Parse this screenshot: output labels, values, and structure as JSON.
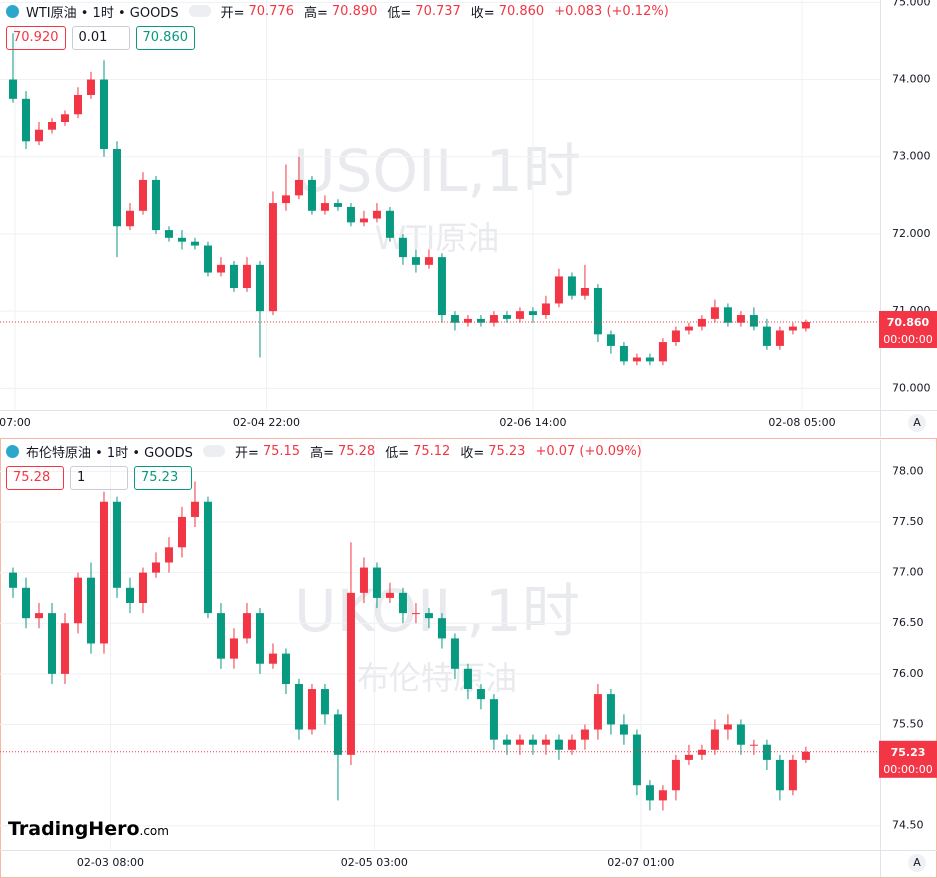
{
  "chart_data": [
    {
      "type": "candlestick",
      "title": "WTI原油 • 1时 • GOODS",
      "ohlc": [
        {
          "label": "开=",
          "value": "70.776"
        },
        {
          "label": "高=",
          "value": "70.890"
        },
        {
          "label": "低=",
          "value": "70.737"
        },
        {
          "label": "收=",
          "value": "70.860"
        }
      ],
      "change": "+0.083 (+0.12%)",
      "inputs": [
        "70.920",
        "0.01",
        "70.860"
      ],
      "watermark": "USOIL,1时",
      "watermark_sub": "WTI原油",
      "up_color": "#f23645",
      "down_color": "#089981",
      "grid": true,
      "xlim": [
        -1,
        66.7
      ],
      "xticks": [
        {
          "value": 0.15,
          "label": "07:00"
        },
        {
          "value": 19.5,
          "label": "02-04 22:00"
        },
        {
          "value": 40,
          "label": "02-06 14:00"
        },
        {
          "value": 60.7,
          "label": "02-08 05:00"
        }
      ],
      "ylim": [
        69.72,
        75.03
      ],
      "yticks": [
        {
          "value": 70,
          "label": "70.000"
        },
        {
          "value": 71,
          "label": "71.000"
        },
        {
          "value": 72,
          "label": "72.000"
        },
        {
          "value": 73,
          "label": "73.000"
        },
        {
          "value": 74,
          "label": "74.000"
        },
        {
          "value": 75,
          "label": "75.000"
        }
      ],
      "open": [
        74.0,
        73.75,
        73.2,
        73.35,
        73.45,
        73.55,
        73.8,
        74.0,
        73.1,
        72.1,
        72.3,
        72.7,
        72.05,
        71.95,
        71.9,
        71.85,
        71.5,
        71.6,
        71.3,
        71.6,
        71.0,
        72.4,
        72.5,
        72.7,
        72.3,
        72.4,
        72.35,
        72.15,
        72.2,
        72.3,
        71.95,
        71.7,
        71.6,
        71.7,
        70.95,
        70.85,
        70.9,
        70.85,
        70.95,
        70.9,
        71.0,
        70.95,
        71.1,
        71.45,
        71.2,
        71.3,
        70.7,
        70.55,
        70.35,
        70.4,
        70.35,
        70.6,
        70.75,
        70.8,
        70.9,
        71.05,
        70.85,
        70.95,
        70.8,
        70.55,
        70.75,
        70.776
      ],
      "high": [
        74.6,
        73.85,
        73.45,
        73.5,
        73.6,
        73.9,
        74.1,
        74.25,
        73.2,
        72.4,
        72.8,
        72.75,
        72.1,
        72.05,
        71.95,
        71.9,
        71.7,
        71.65,
        71.7,
        71.65,
        72.55,
        72.9,
        73.0,
        72.75,
        72.5,
        72.45,
        72.4,
        72.3,
        72.4,
        72.35,
        72.0,
        71.8,
        71.8,
        71.75,
        71.0,
        70.95,
        70.95,
        71.0,
        71.0,
        71.05,
        71.05,
        71.2,
        71.55,
        71.5,
        71.6,
        71.35,
        70.75,
        70.6,
        70.45,
        70.45,
        70.65,
        70.8,
        70.85,
        70.95,
        71.15,
        71.1,
        71.0,
        71.05,
        70.9,
        70.8,
        70.85,
        70.89
      ],
      "low": [
        73.7,
        73.1,
        73.15,
        73.3,
        73.4,
        73.5,
        73.75,
        73.0,
        71.7,
        72.05,
        72.25,
        72.0,
        71.9,
        71.8,
        71.8,
        71.45,
        71.45,
        71.25,
        71.25,
        70.4,
        70.95,
        72.3,
        72.45,
        72.25,
        72.25,
        72.3,
        72.1,
        72.1,
        72.15,
        71.9,
        71.6,
        71.5,
        71.55,
        70.85,
        70.75,
        70.8,
        70.8,
        70.8,
        70.85,
        70.85,
        70.85,
        70.9,
        71.05,
        71.15,
        71.15,
        70.6,
        70.45,
        70.3,
        70.3,
        70.3,
        70.3,
        70.55,
        70.7,
        70.75,
        70.85,
        70.8,
        70.8,
        70.75,
        70.5,
        70.5,
        70.7,
        70.737
      ],
      "close": [
        73.75,
        73.2,
        73.35,
        73.45,
        73.55,
        73.8,
        74.0,
        73.1,
        72.1,
        72.3,
        72.7,
        72.05,
        71.95,
        71.9,
        71.85,
        71.5,
        71.6,
        71.3,
        71.6,
        71.0,
        72.4,
        72.5,
        72.7,
        72.3,
        72.4,
        72.35,
        72.15,
        72.2,
        72.3,
        71.95,
        71.7,
        71.6,
        71.7,
        70.95,
        70.85,
        70.9,
        70.85,
        70.95,
        70.9,
        71.0,
        70.95,
        71.1,
        71.45,
        71.2,
        71.3,
        70.7,
        70.55,
        70.35,
        70.4,
        70.35,
        70.6,
        70.75,
        70.8,
        70.9,
        71.05,
        70.85,
        70.95,
        70.8,
        70.55,
        70.75,
        70.8,
        70.86
      ],
      "last_price": {
        "value": 70.86,
        "label": "70.860"
      },
      "countdown": "00:00:00",
      "auto_label": "A"
    },
    {
      "type": "candlestick",
      "title": "布伦特原油 • 1时 • GOODS",
      "ohlc": [
        {
          "label": "开=",
          "value": "75.15"
        },
        {
          "label": "高=",
          "value": "75.28"
        },
        {
          "label": "低=",
          "value": "75.12"
        },
        {
          "label": "收=",
          "value": "75.23"
        }
      ],
      "change": "+0.07 (+0.09%)",
      "inputs": [
        "75.28",
        "1",
        "75.23"
      ],
      "watermark": "UKOIL,1时",
      "watermark_sub": "布伦特原油",
      "up_color": "#f23645",
      "down_color": "#089981",
      "grid": true,
      "xlim": [
        -1,
        66.7
      ],
      "xticks": [
        {
          "value": 7.5,
          "label": "02-03 08:00"
        },
        {
          "value": 27.8,
          "label": "02-05 03:00"
        },
        {
          "value": 48.3,
          "label": "02-07 01:00"
        }
      ],
      "ylim": [
        74.26,
        78.31
      ],
      "yticks": [
        {
          "value": 74.5,
          "label": "74.50"
        },
        {
          "value": 75.5,
          "label": "75.50"
        },
        {
          "value": 76,
          "label": "76.00"
        },
        {
          "value": 76.5,
          "label": "76.50"
        },
        {
          "value": 77,
          "label": "77.00"
        },
        {
          "value": 77.5,
          "label": "77.50"
        },
        {
          "value": 78,
          "label": "78.00"
        }
      ],
      "open": [
        77.0,
        76.85,
        76.55,
        76.6,
        76.0,
        76.5,
        76.95,
        76.3,
        77.7,
        76.85,
        76.7,
        77.0,
        77.1,
        77.25,
        77.55,
        77.7,
        76.6,
        76.15,
        76.35,
        76.6,
        76.1,
        76.2,
        75.9,
        75.45,
        75.85,
        75.6,
        75.2,
        76.8,
        77.05,
        76.75,
        76.8,
        76.6,
        76.6,
        76.55,
        76.35,
        76.05,
        75.85,
        75.75,
        75.35,
        75.3,
        75.35,
        75.3,
        75.35,
        75.25,
        75.35,
        75.45,
        75.8,
        75.5,
        75.4,
        74.9,
        74.75,
        74.85,
        75.15,
        75.2,
        75.25,
        75.45,
        75.5,
        75.3,
        75.3,
        75.15,
        74.85,
        75.15
      ],
      "high": [
        77.05,
        76.95,
        76.7,
        76.7,
        76.6,
        77.0,
        77.1,
        77.8,
        77.75,
        76.95,
        77.05,
        77.2,
        77.35,
        77.65,
        77.9,
        77.75,
        76.7,
        76.45,
        76.7,
        76.65,
        76.3,
        76.25,
        75.95,
        75.9,
        75.9,
        75.65,
        77.3,
        77.15,
        77.1,
        76.9,
        76.85,
        76.7,
        76.65,
        76.6,
        76.4,
        76.1,
        75.9,
        75.8,
        75.4,
        75.4,
        75.4,
        75.4,
        75.4,
        75.4,
        75.5,
        75.9,
        75.85,
        75.6,
        75.45,
        74.95,
        74.9,
        75.2,
        75.3,
        75.3,
        75.55,
        75.6,
        75.55,
        75.35,
        75.35,
        75.2,
        75.2,
        75.28
      ],
      "low": [
        76.75,
        76.45,
        76.45,
        75.9,
        75.9,
        76.4,
        76.2,
        76.2,
        76.75,
        76.6,
        76.6,
        76.95,
        77.0,
        77.15,
        77.45,
        76.55,
        76.05,
        76.05,
        76.3,
        76.0,
        76.05,
        75.8,
        75.35,
        75.4,
        75.5,
        74.75,
        75.1,
        76.7,
        76.65,
        76.7,
        76.5,
        76.5,
        76.45,
        76.25,
        75.95,
        75.75,
        75.65,
        75.25,
        75.2,
        75.2,
        75.2,
        75.2,
        75.15,
        75.2,
        75.25,
        75.35,
        75.4,
        75.3,
        74.8,
        74.65,
        74.65,
        74.75,
        75.1,
        75.15,
        75.2,
        75.35,
        75.2,
        75.2,
        75.05,
        74.75,
        74.8,
        75.12
      ],
      "close": [
        76.85,
        76.55,
        76.6,
        76.0,
        76.5,
        76.95,
        76.3,
        77.7,
        76.85,
        76.7,
        77.0,
        77.1,
        77.25,
        77.55,
        77.7,
        76.6,
        76.15,
        76.35,
        76.6,
        76.1,
        76.2,
        75.9,
        75.45,
        75.85,
        75.6,
        75.2,
        76.8,
        77.05,
        76.75,
        76.8,
        76.6,
        76.6,
        76.55,
        76.35,
        76.05,
        75.85,
        75.75,
        75.35,
        75.3,
        75.35,
        75.3,
        75.35,
        75.25,
        75.35,
        75.45,
        75.8,
        75.5,
        75.4,
        74.9,
        74.75,
        74.85,
        75.15,
        75.2,
        75.25,
        75.45,
        75.5,
        75.3,
        75.3,
        75.15,
        74.85,
        75.15,
        75.23
      ],
      "last_price": {
        "value": 75.23,
        "label": "75.23"
      },
      "countdown": "00:00:00",
      "auto_label": "A"
    }
  ],
  "logo": {
    "name": "TradingHero",
    "suffix": ".com"
  }
}
